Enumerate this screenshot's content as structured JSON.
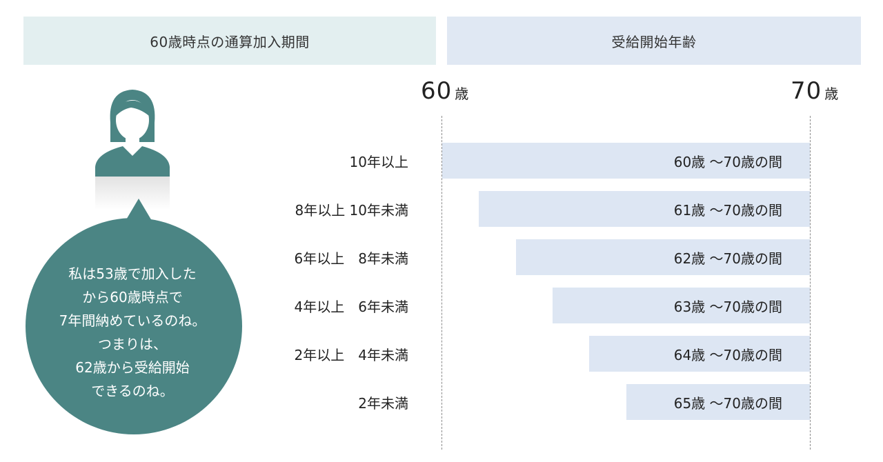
{
  "header": {
    "left": "60歳時点の通算加入期間",
    "right": "受給開始年齢"
  },
  "colors": {
    "header_left_bg": "#e3eff0",
    "header_right_bg": "#e0e8f3",
    "bar": "#dde6f3",
    "bubble": "#4b8584"
  },
  "icons": {
    "person": "woman-avatar-icon",
    "bubble": "speech-bubble"
  },
  "chart_data": {
    "type": "bar",
    "orientation": "horizontal",
    "x_range": [
      60,
      70
    ],
    "x_unit": "歳",
    "x_ticks": [
      {
        "value": 60,
        "num": "60",
        "unit": "歳"
      },
      {
        "value": 70,
        "num": "70",
        "unit": "歳"
      }
    ],
    "categories": [
      "10年以上",
      "8年以上 10年未満",
      "6年以上　8年未満",
      "4年以上　6年未満",
      "2年以上　4年未満",
      "2年未満"
    ],
    "series": [
      {
        "start_ages": [
          60,
          61,
          62,
          63,
          64,
          65
        ],
        "end_ages": [
          70,
          70,
          70,
          70,
          70,
          70
        ],
        "labels": [
          "60歳 〜70歳の間",
          "61歳 〜70歳の間",
          "62歳 〜70歳の間",
          "63歳 〜70歳の間",
          "64歳 〜70歳の間",
          "65歳 〜70歳の間"
        ]
      }
    ]
  },
  "speech": {
    "lines": [
      "私は53歳で加入した",
      "から60歳時点で",
      "7年間納めているのね。",
      "つまりは、",
      "62歳から受給開始",
      "できるのね。"
    ]
  }
}
